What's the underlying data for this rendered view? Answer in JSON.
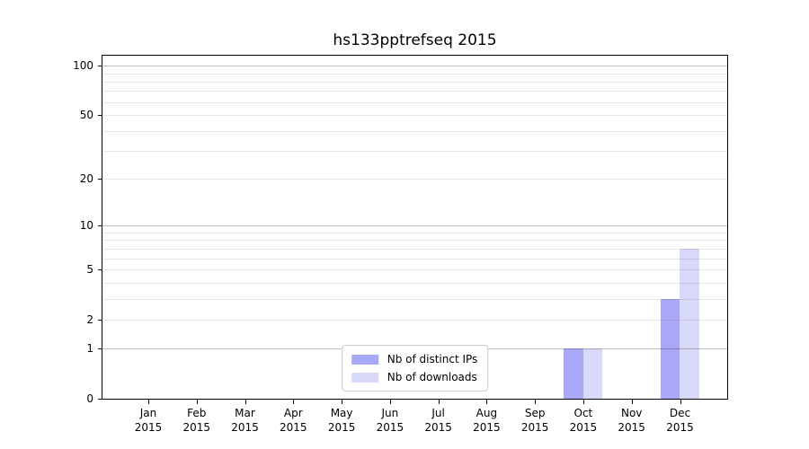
{
  "chart_data": {
    "type": "bar",
    "title": "hs133pptrefseq 2015",
    "categories": [
      "Jan",
      "Feb",
      "Mar",
      "Apr",
      "May",
      "Jun",
      "Jul",
      "Aug",
      "Sep",
      "Oct",
      "Nov",
      "Dec"
    ],
    "category_sublabel": "2015",
    "series": [
      {
        "name": "Nb of distinct IPs",
        "color": "#a8a8f6",
        "values": [
          0,
          0,
          0,
          0,
          0,
          0,
          0,
          0,
          0,
          1,
          0,
          3
        ]
      },
      {
        "name": "Nb of downloads",
        "color": "#d8d8f9",
        "values": [
          0,
          0,
          0,
          0,
          0,
          0,
          0,
          0,
          0,
          1,
          0,
          7
        ]
      }
    ],
    "xlabel": "",
    "ylabel": "",
    "yscale": "log1p",
    "ylim": [
      0,
      115
    ],
    "yticks": [
      0,
      1,
      2,
      5,
      10,
      20,
      50,
      100
    ],
    "grid": {
      "on": true,
      "major_lines": [
        1,
        10,
        100
      ],
      "minor_lines": [
        2,
        3,
        4,
        5,
        6,
        7,
        8,
        9,
        20,
        30,
        40,
        50,
        60,
        70,
        80,
        90
      ]
    },
    "legend_position": "lower center"
  },
  "colors": {
    "major_grid": "rgba(0,0,0,0.24)",
    "minor_grid": "rgba(0,0,0,0.09)",
    "spine": "#000000",
    "text": "#000000",
    "legend_border": "#cccccc",
    "background": "#ffffff"
  }
}
